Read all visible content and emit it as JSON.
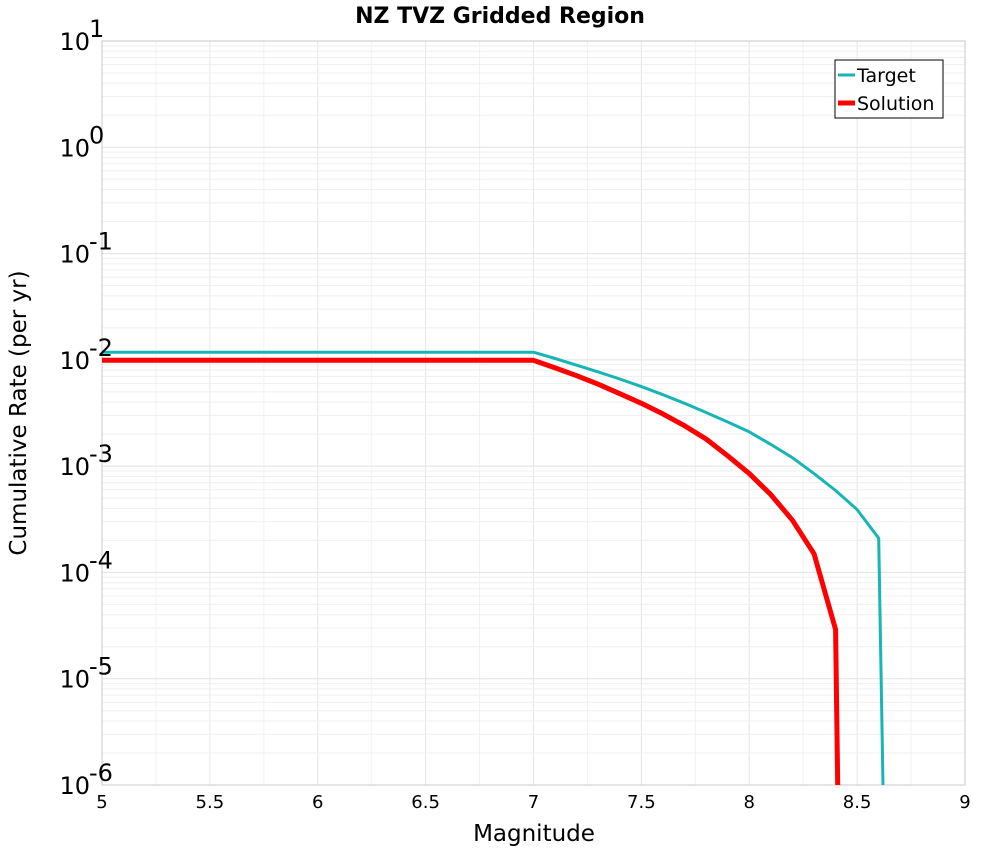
{
  "chart_data": {
    "type": "line",
    "title": "NZ TVZ Gridded Region",
    "xlabel": "Magnitude",
    "ylabel": "Cumulative Rate (per yr)",
    "xlim": [
      5,
      9
    ],
    "ylim": [
      1e-06,
      10
    ],
    "yscale": "log",
    "grid": true,
    "legend_position": "top-right",
    "x_ticks": [
      "5",
      "5.5",
      "6",
      "6.5",
      "7",
      "7.5",
      "8",
      "8.5",
      "9"
    ],
    "y_ticks": [
      {
        "base": "10",
        "exp": "1",
        "value": 10
      },
      {
        "base": "10",
        "exp": "0",
        "value": 1
      },
      {
        "base": "10",
        "exp": "-1",
        "value": 0.1
      },
      {
        "base": "10",
        "exp": "-2",
        "value": 0.01
      },
      {
        "base": "10",
        "exp": "-3",
        "value": 0.001
      },
      {
        "base": "10",
        "exp": "-4",
        "value": 0.0001
      },
      {
        "base": "10",
        "exp": "-5",
        "value": 1e-05
      },
      {
        "base": "10",
        "exp": "-6",
        "value": 1e-06
      }
    ],
    "series": [
      {
        "name": "Target",
        "color": "#17b5b5",
        "x": [
          5.0,
          7.0,
          7.1,
          7.2,
          7.3,
          7.4,
          7.5,
          7.6,
          7.7,
          7.8,
          7.9,
          8.0,
          8.1,
          8.2,
          8.3,
          8.4,
          8.5,
          8.6,
          8.62
        ],
        "y": [
          0.0118,
          0.0118,
          0.0103,
          0.0089,
          0.0077,
          0.0066,
          0.0056,
          0.0047,
          0.0039,
          0.0032,
          0.0026,
          0.0021,
          0.0016,
          0.0012,
          0.00085,
          0.00059,
          0.00039,
          0.00021,
          1e-06
        ]
      },
      {
        "name": "Solution",
        "color": "#ff0000",
        "x": [
          5.0,
          7.0,
          7.1,
          7.2,
          7.3,
          7.4,
          7.5,
          7.6,
          7.7,
          7.8,
          7.9,
          8.0,
          8.1,
          8.2,
          8.3,
          8.4,
          8.41
        ],
        "y": [
          0.0099,
          0.0099,
          0.0084,
          0.0071,
          0.0059,
          0.0048,
          0.0039,
          0.0031,
          0.0024,
          0.0018,
          0.00125,
          0.00085,
          0.00054,
          0.00031,
          0.00015,
          2.9e-05,
          1e-06
        ]
      }
    ]
  }
}
